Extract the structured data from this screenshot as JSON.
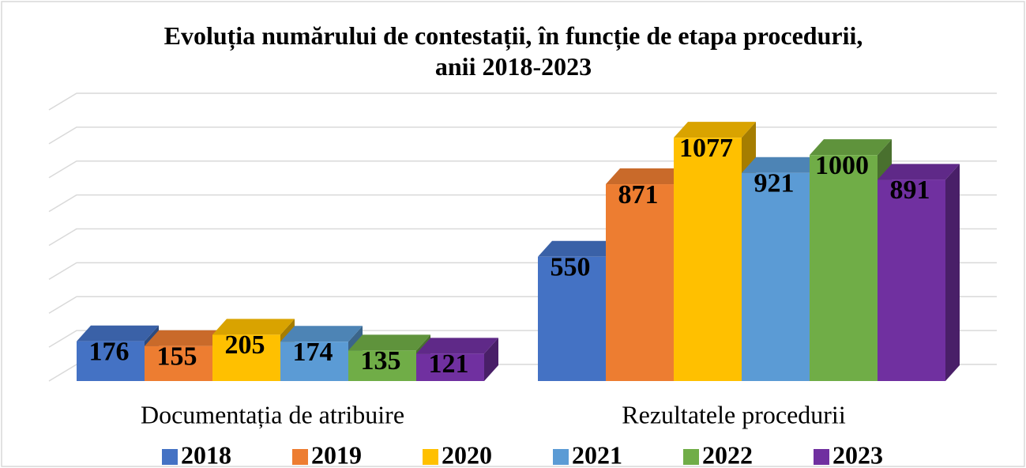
{
  "chart_data": {
    "type": "bar3d",
    "title": "Evoluția numărului de contestații, în funcție de etapa procedurii, anii 2018-2023",
    "categories": [
      "Documentația de atribuire",
      "Rezultatele procedurii"
    ],
    "series": [
      {
        "name": "2018",
        "color": "#4472c4",
        "values": [
          176,
          550
        ]
      },
      {
        "name": "2019",
        "color": "#ed7d31",
        "values": [
          155,
          871
        ]
      },
      {
        "name": "2020",
        "color": "#ffc000",
        "values": [
          205,
          1077
        ]
      },
      {
        "name": "2021",
        "color": "#5b9bd5",
        "values": [
          174,
          921
        ]
      },
      {
        "name": "2022",
        "color": "#70ad47",
        "values": [
          135,
          1000
        ]
      },
      {
        "name": "2023",
        "color": "#7030a0",
        "values": [
          121,
          891
        ]
      }
    ],
    "ylim": [
      0,
      1200
    ],
    "yticks": [
      0,
      150,
      300,
      450,
      600,
      750,
      900,
      1050,
      1200
    ],
    "grid": true,
    "legend": "bottom"
  }
}
